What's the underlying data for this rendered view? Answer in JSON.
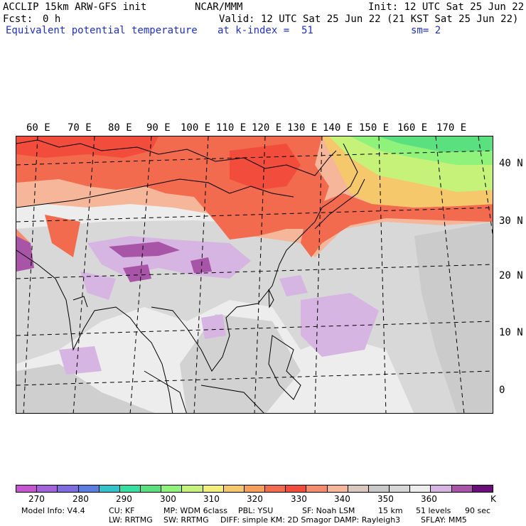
{
  "header": {
    "model_line": "ACCLIP 15km ARW-GFS init",
    "org": "NCAR/MMM",
    "init": "Init: 12 UTC Sat 25 Jun 22",
    "fcst_label": "Fcst:",
    "fcst_value": "0 h",
    "valid": "Valid: 12 UTC Sat 25 Jun 22 (21 KST Sat 25 Jun 22)",
    "field": "Equivalent potential temperature",
    "level": "at k-index =  51",
    "smooth": "sm= 2"
  },
  "map": {
    "lon_labels": [
      "60 E",
      "70 E",
      "80 E",
      "90 E",
      "100 E",
      "110 E",
      "120 E",
      "130 E",
      "140 E",
      "150 E",
      "160 E",
      "170 E"
    ],
    "lat_labels": [
      "40 N",
      "30 N",
      "20 N",
      "10 N",
      "0"
    ]
  },
  "colorbar": {
    "colors": [
      "#c456cf",
      "#a363db",
      "#7f6de0",
      "#5b7ee0",
      "#33c3c9",
      "#36dfa4",
      "#5be07f",
      "#8ff27a",
      "#c7f27a",
      "#f2f07a",
      "#f5c86b",
      "#f5a05a",
      "#f26b4e",
      "#f24c3c",
      "#f58c6e",
      "#f5b69a",
      "#d8c8bd",
      "#c9c9c9",
      "#d6d6d6",
      "#ededed",
      "#d7b5e3",
      "#a855a8",
      "#6b0f78"
    ],
    "ticks": [
      "270",
      "280",
      "290",
      "300",
      "310",
      "320",
      "330",
      "340",
      "350",
      "360"
    ],
    "unit": "K"
  },
  "footer": {
    "line1_col1": "Model Info: V4.4",
    "line1_col2": "CU: KF",
    "line1_col3": "MP: WDM 6class",
    "line1_col4": "PBL: YSU",
    "line1_col5": "SF: Noah LSM",
    "line1_col6": "15 km",
    "line1_col7": "51 levels",
    "line1_col8": "90 sec",
    "line2_col1": "LW: RRTMG",
    "line2_col2": "SW: RRTMG",
    "line2_col3": "DIFF: simple KM: 2D Smagor DAMP: Rayleigh3",
    "line2_col4": "SFLAY: MM5"
  }
}
